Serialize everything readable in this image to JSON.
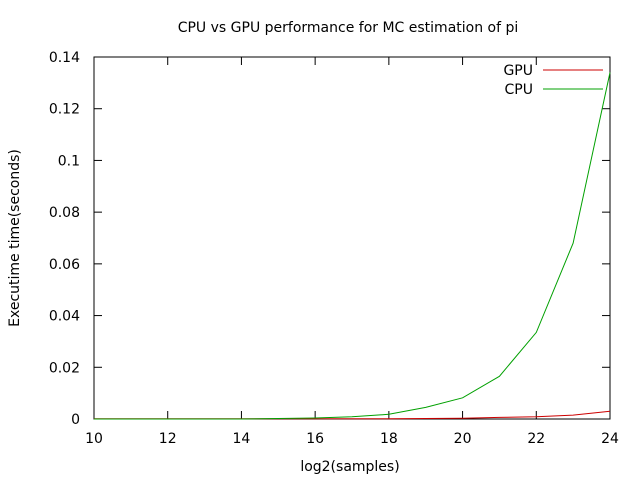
{
  "chart_data": {
    "type": "line",
    "title": "CPU vs GPU performance for MC estimation of pi",
    "xlabel": "log2(samples)",
    "ylabel": "Executime time(seconds)",
    "xlim": [
      10,
      24
    ],
    "ylim": [
      0,
      0.14
    ],
    "x_ticks": [
      "10",
      "12",
      "14",
      "16",
      "18",
      "20",
      "22",
      "24"
    ],
    "y_ticks": [
      "0",
      "0.02",
      "0.04",
      "0.06",
      "0.08",
      "0.1",
      "0.12",
      "0.14"
    ],
    "x_tick_values": [
      10,
      12,
      14,
      16,
      18,
      20,
      22,
      24
    ],
    "y_tick_values": [
      0,
      0.02,
      0.04,
      0.06,
      0.08,
      0.1,
      0.12,
      0.14
    ],
    "grid": false,
    "legend_position": "top-right",
    "series": [
      {
        "name": "GPU",
        "color": "#cc0000",
        "x": [
          10,
          11,
          12,
          13,
          14,
          15,
          16,
          17,
          18,
          19,
          20,
          21,
          22,
          23,
          24
        ],
        "y": [
          0.0001,
          0.0001,
          0.0001,
          0.0001,
          0.0001,
          0.0001,
          0.0001,
          0.0001,
          0.0001,
          0.0002,
          0.0003,
          0.0006,
          0.0009,
          0.0015,
          0.003
        ]
      },
      {
        "name": "CPU",
        "color": "#00a000",
        "x": [
          10,
          11,
          12,
          13,
          14,
          15,
          16,
          17,
          18,
          19,
          20,
          21,
          22,
          23,
          24
        ],
        "y": [
          0.0,
          0.0,
          0.0,
          0.0,
          0.0,
          0.0002,
          0.0004,
          0.0009,
          0.0018,
          0.0045,
          0.0082,
          0.0165,
          0.0335,
          0.068,
          0.134
        ]
      }
    ]
  }
}
